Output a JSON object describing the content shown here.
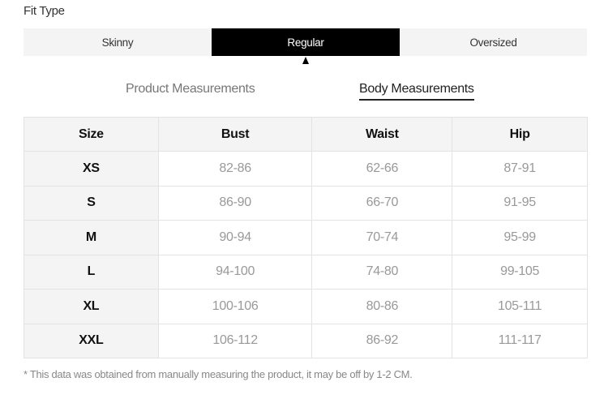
{
  "fit_type": {
    "title": "Fit Type",
    "options": [
      "Skinny",
      "Regular",
      "Oversized"
    ],
    "selected": "Regular"
  },
  "measurement_tabs": {
    "product": "Product Measurements",
    "body": "Body Measurements",
    "active": "Body Measurements"
  },
  "table": {
    "headers": [
      "Size",
      "Bust",
      "Waist",
      "Hip"
    ],
    "rows": [
      [
        "XS",
        "82-86",
        "62-66",
        "87-91"
      ],
      [
        "S",
        "86-90",
        "66-70",
        "91-95"
      ],
      [
        "M",
        "90-94",
        "70-74",
        "95-99"
      ],
      [
        "L",
        "94-100",
        "74-80",
        "99-105"
      ],
      [
        "XL",
        "100-106",
        "80-86",
        "105-111"
      ],
      [
        "XXL",
        "106-112",
        "86-92",
        "111-117"
      ]
    ]
  },
  "footnote": "* This data was obtained from manually measuring the product, it may be off by 1-2 CM."
}
